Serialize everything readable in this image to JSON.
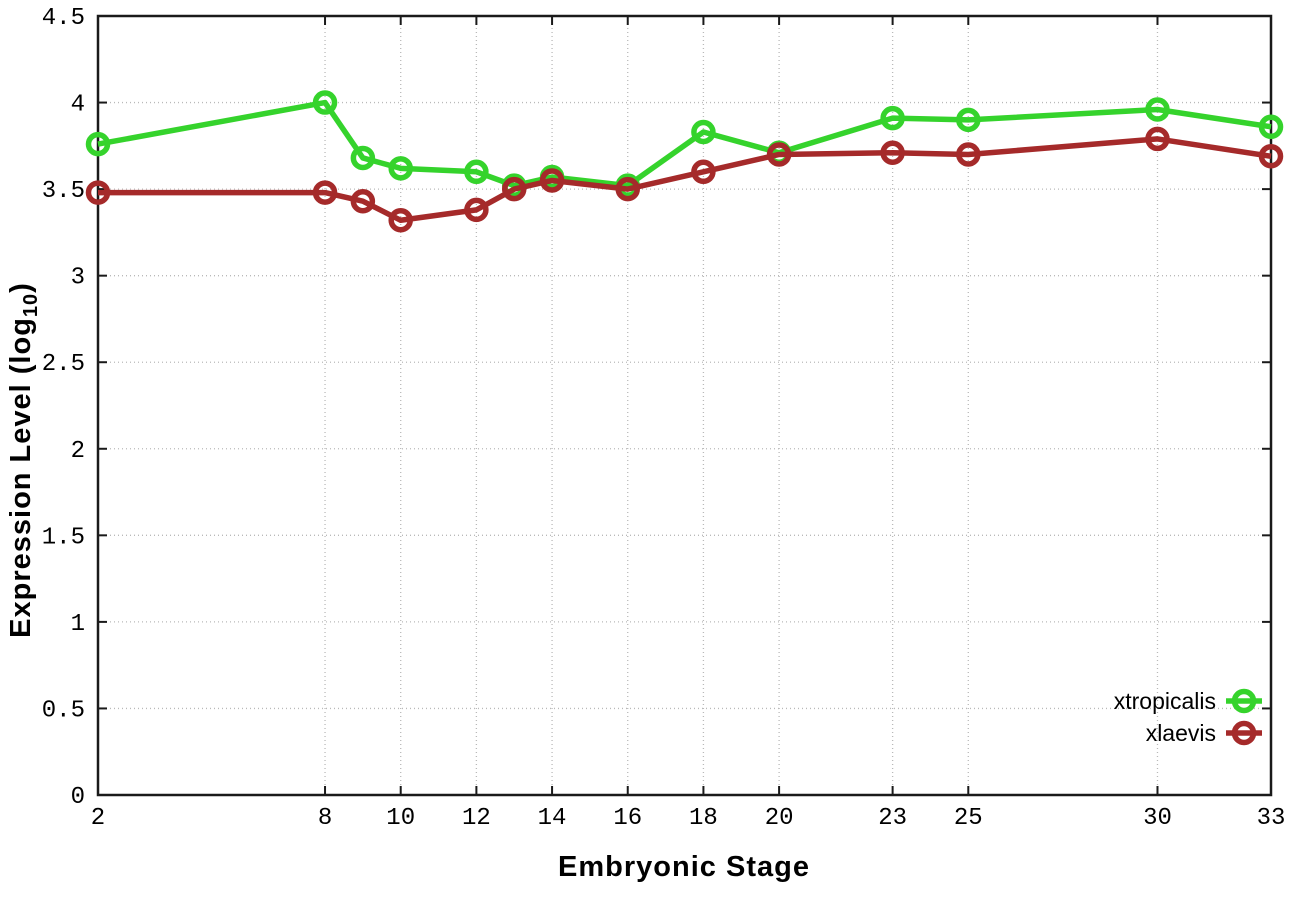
{
  "chart_data": {
    "type": "line",
    "title": "",
    "xlabel": "Embryonic Stage",
    "ylabel": "Expression Level (log10)",
    "ylabel_main": "Expression Level (log",
    "ylabel_sub": "10",
    "ylabel_close": ")",
    "x_tick_labels": [
      "2",
      "8",
      "10",
      "12",
      "14",
      "16",
      "18",
      "20",
      "23",
      "25",
      "30",
      "33"
    ],
    "y_tick_labels": [
      "0",
      "0.5",
      "1",
      "1.5",
      "2",
      "2.5",
      "3",
      "3.5",
      "4",
      "4.5"
    ],
    "xlim": [
      2,
      33
    ],
    "ylim": [
      0,
      4.5
    ],
    "grid": true,
    "grid_style": "dotted",
    "legend_position": "bottom-right",
    "background_color": "#ffffff",
    "x": [
      2,
      8,
      9,
      10,
      12,
      13,
      14,
      16,
      18,
      20,
      23,
      25,
      30,
      33
    ],
    "series": [
      {
        "name": "xtropicalis",
        "color": "#35d32c",
        "marker": "open-circle",
        "values": [
          3.76,
          4.0,
          3.68,
          3.62,
          3.6,
          3.52,
          3.57,
          3.52,
          3.83,
          3.71,
          3.91,
          3.9,
          3.96,
          3.86
        ]
      },
      {
        "name": "xlaevis",
        "color": "#a52a2a",
        "marker": "open-circle",
        "values": [
          3.48,
          3.48,
          3.43,
          3.32,
          3.38,
          3.5,
          3.55,
          3.5,
          3.6,
          3.7,
          3.71,
          3.7,
          3.79,
          3.69
        ]
      }
    ]
  }
}
